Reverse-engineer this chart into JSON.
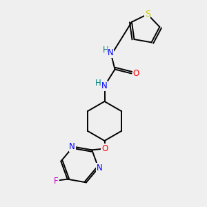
{
  "background_color": "#efefef",
  "bg_rgb": [
    0.937,
    0.937,
    0.937
  ],
  "black": "#000000",
  "blue": "#0000ff",
  "red": "#ff0000",
  "yellow": "#cccc00",
  "magenta": "#cc00cc",
  "teal": "#008080",
  "lw": 1.4,
  "fontsize": 8.5,
  "xlim": [
    0,
    10
  ],
  "ylim": [
    0,
    10
  ]
}
